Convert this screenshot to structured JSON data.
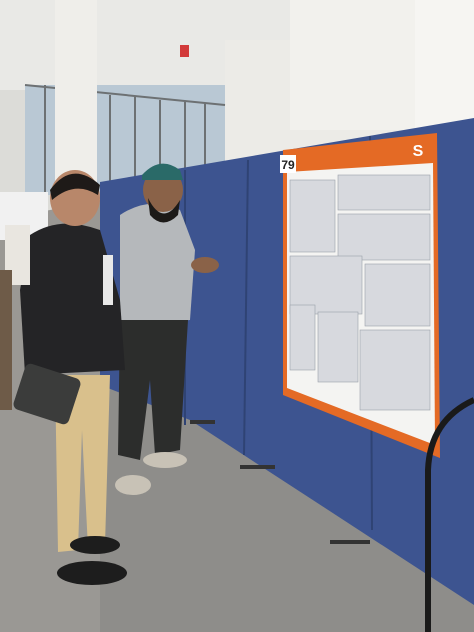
{
  "poster": {
    "number": "79",
    "logo": "S"
  }
}
